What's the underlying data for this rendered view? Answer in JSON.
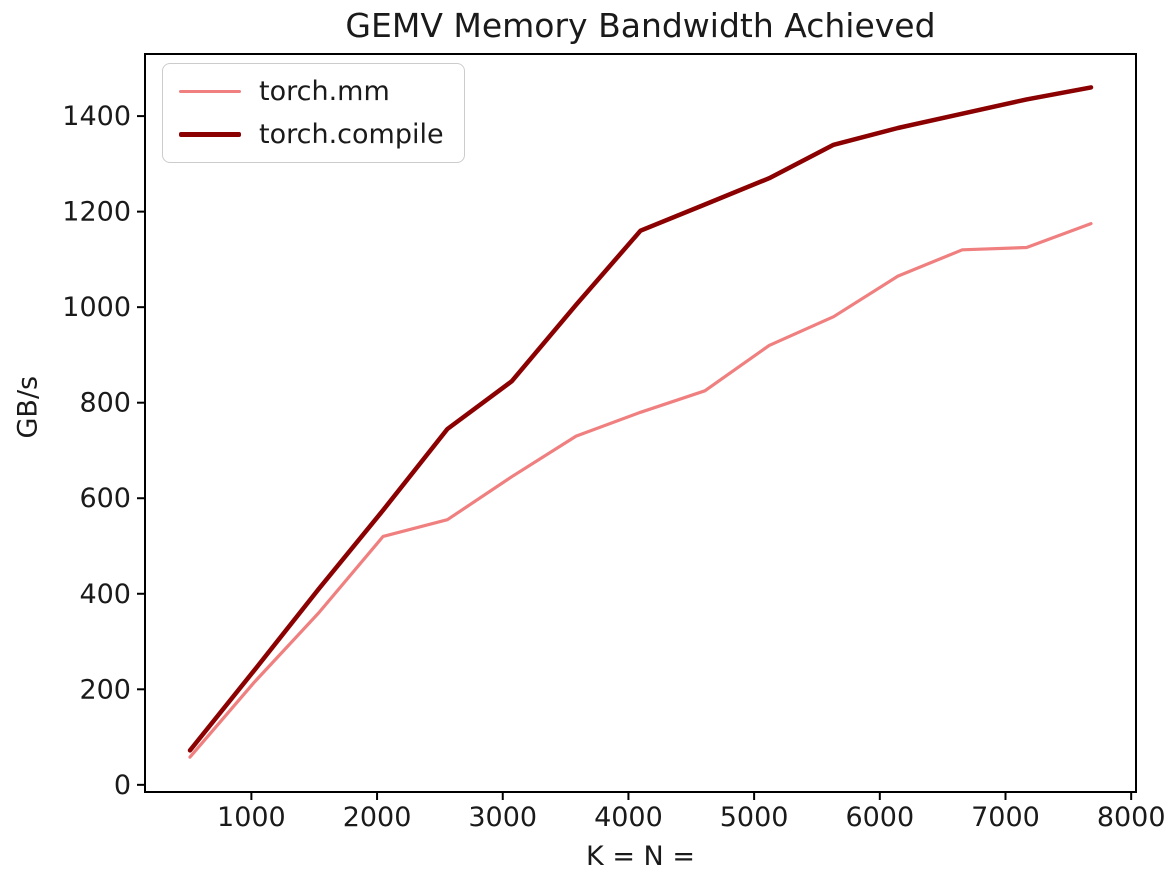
{
  "chart_data": {
    "type": "line",
    "title": "GEMV Memory Bandwidth Achieved",
    "xlabel": "K = N =",
    "ylabel": "GB/s",
    "x": [
      512,
      1024,
      1536,
      2048,
      2560,
      3072,
      3584,
      4096,
      4608,
      5120,
      5632,
      6144,
      6656,
      7168,
      7680
    ],
    "series": [
      {
        "name": "torch.mm",
        "color": "#f08080",
        "line_width": 3.2,
        "values": [
          58,
          215,
          360,
          520,
          555,
          645,
          730,
          780,
          825,
          920,
          980,
          1065,
          1120,
          1125,
          1175
        ]
      },
      {
        "name": "torch.compile",
        "color": "#8b0000",
        "line_width": 4.5,
        "values": [
          72,
          240,
          410,
          575,
          745,
          845,
          1005,
          1160,
          1215,
          1270,
          1340,
          1375,
          1405,
          1435,
          1460
        ]
      }
    ],
    "x_ticks": [
      1000,
      2000,
      3000,
      4000,
      5000,
      6000,
      7000,
      8000
    ],
    "y_ticks": [
      0,
      200,
      400,
      600,
      800,
      1000,
      1200,
      1400
    ],
    "xlim": [
      153.6,
      8038.4
    ],
    "ylim": [
      -15,
      1530
    ],
    "grid": false,
    "legend_position": "upper left",
    "background_color": "#ffffff",
    "axis_color": "#000000",
    "text_color": "#1a1a1a"
  }
}
